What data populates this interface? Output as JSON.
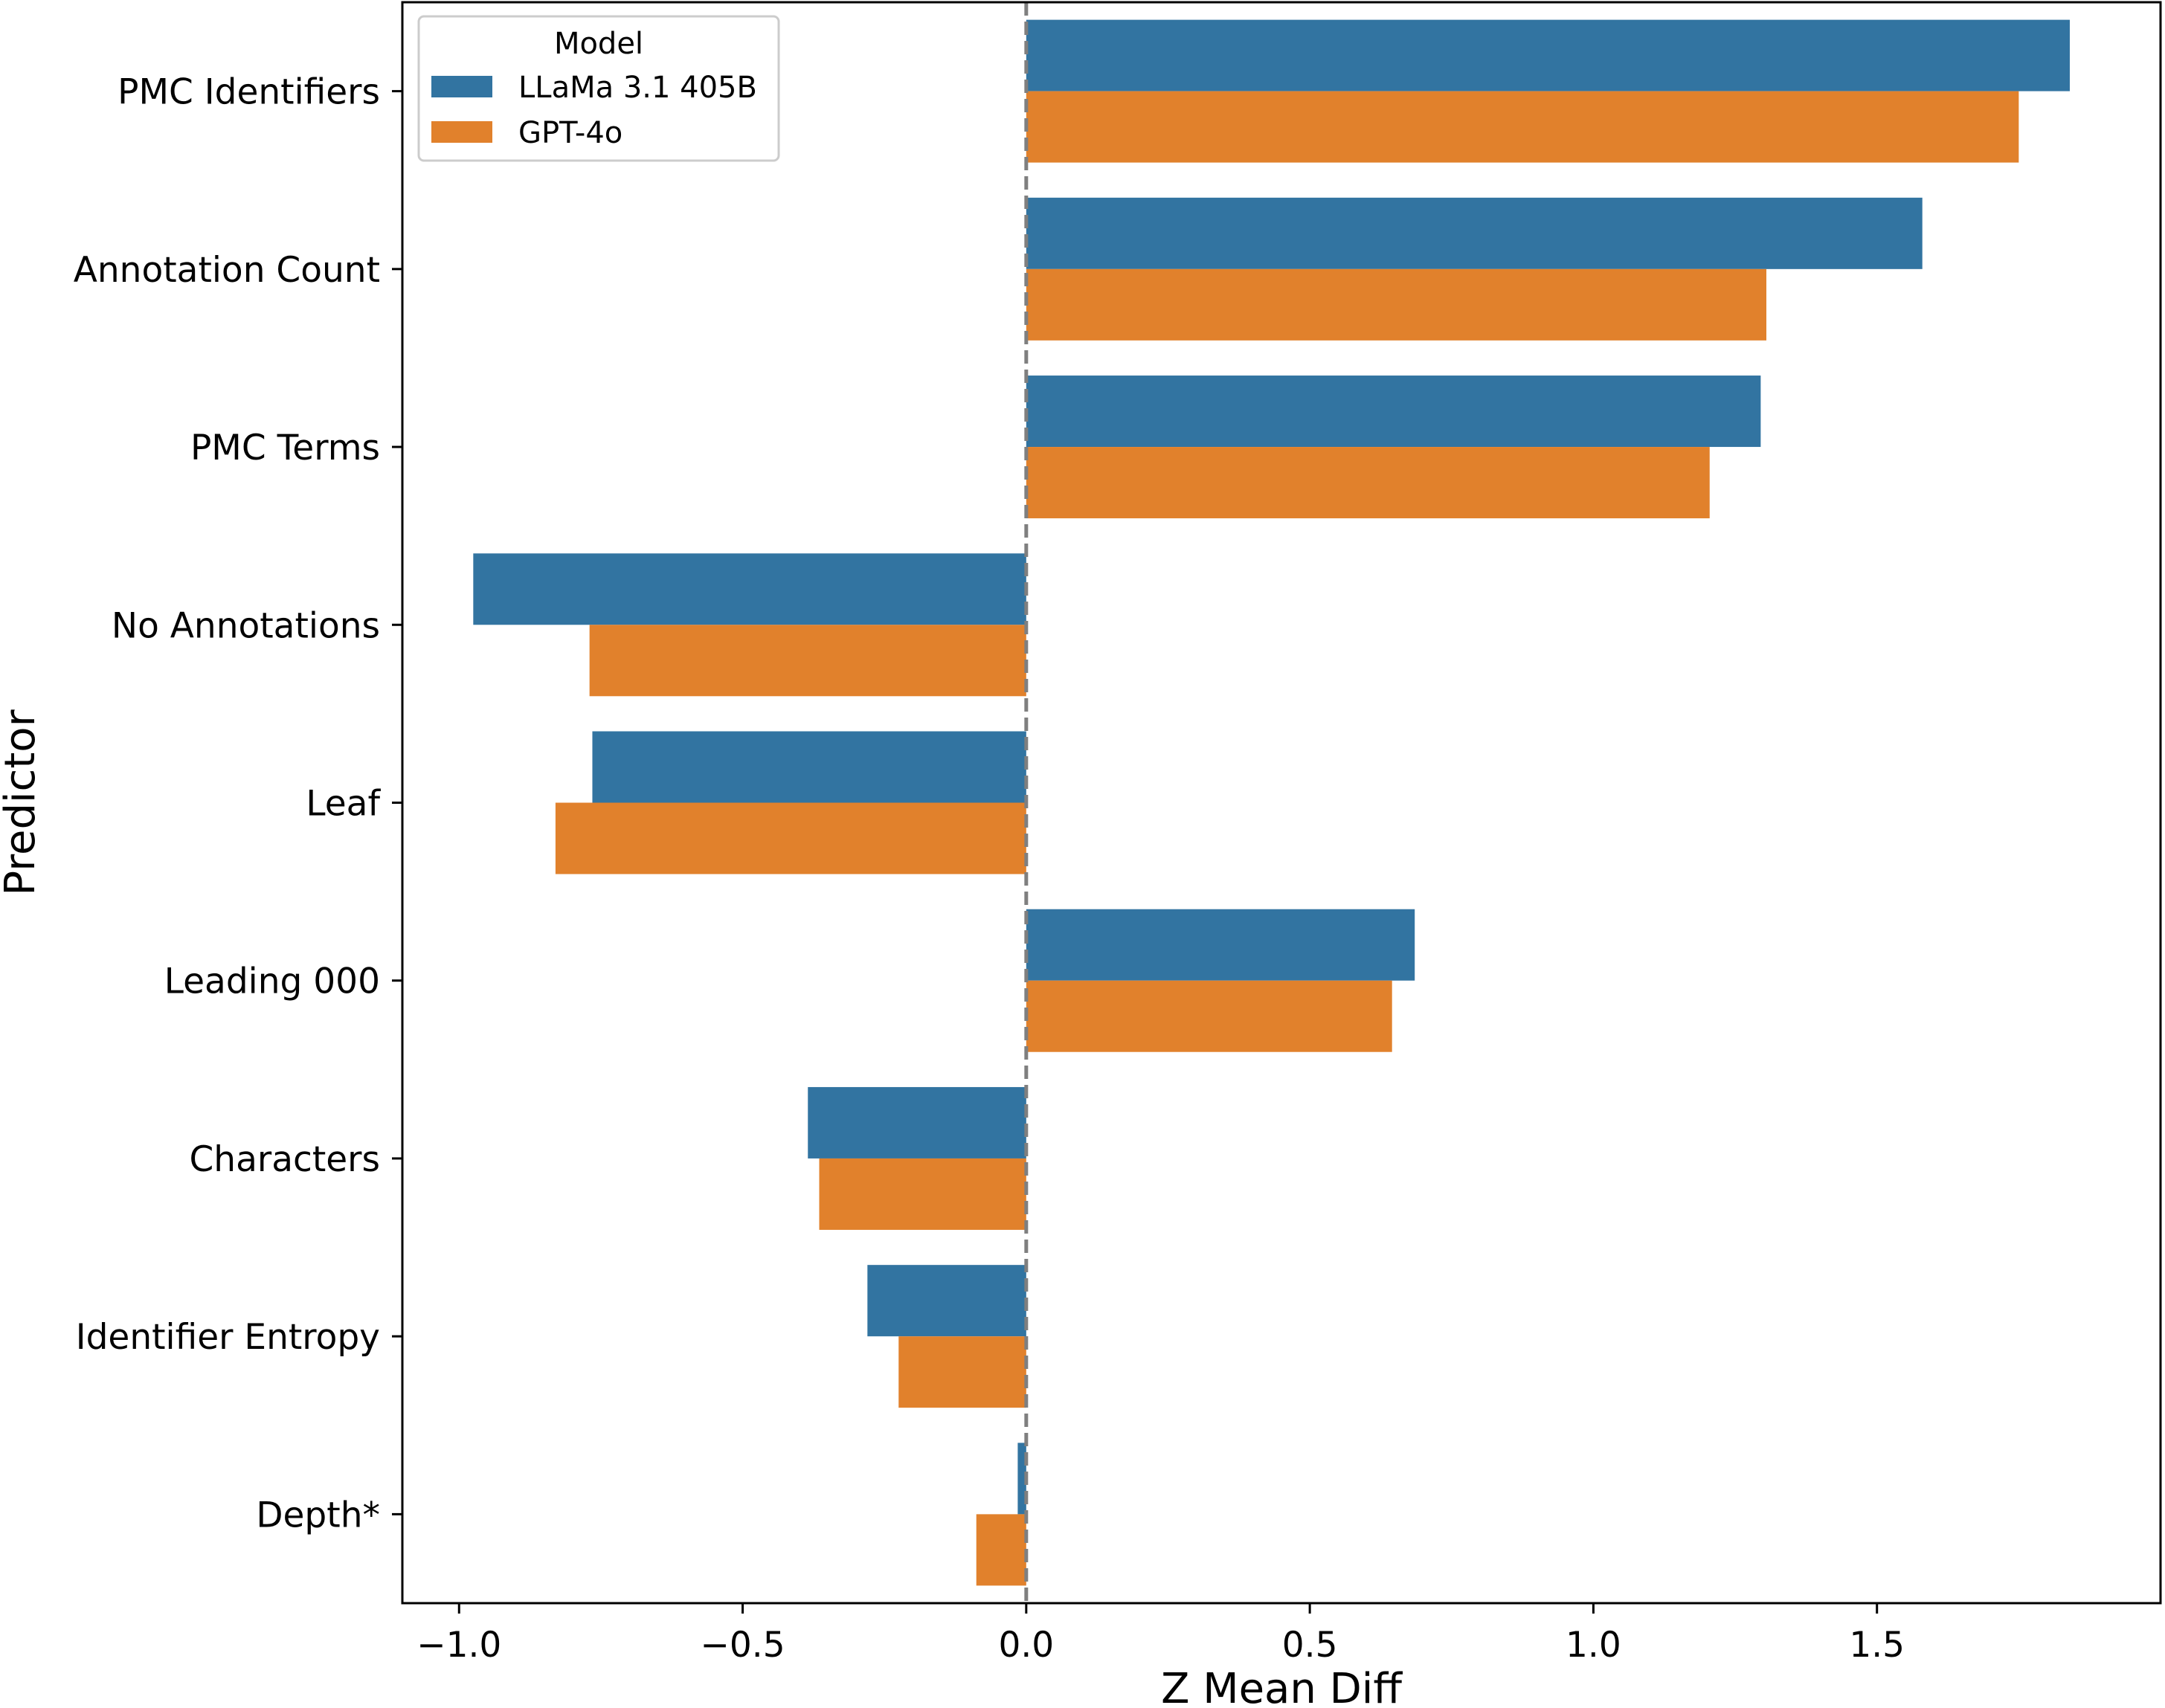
{
  "chart_data": {
    "type": "bar",
    "orientation": "horizontal",
    "title": "",
    "xlabel": "Z Mean Diff",
    "ylabel": "Predictor",
    "xlim": [
      -1.1,
      2.0
    ],
    "xticks": [
      -1.0,
      -0.5,
      0.0,
      0.5,
      1.0,
      1.5
    ],
    "xtick_labels": [
      "−1.0",
      "−0.5",
      "0.0",
      "0.5",
      "1.0",
      "1.5"
    ],
    "categories": [
      "PMC Identifiers",
      "Annotation Count",
      "PMC Terms",
      "No Annotations",
      "Leaf",
      "Leading 000",
      "Characters",
      "Identifier Entropy",
      "Depth*"
    ],
    "series": [
      {
        "name": "LLaMa 3.1 405B",
        "color": "#3274a1",
        "values": [
          1.84,
          1.58,
          1.295,
          -0.975,
          -0.765,
          0.685,
          -0.385,
          -0.28,
          -0.015
        ]
      },
      {
        "name": "GPT-4o",
        "color": "#e1812c",
        "values": [
          1.75,
          1.305,
          1.205,
          -0.77,
          -0.83,
          0.645,
          -0.365,
          -0.225,
          -0.088
        ]
      }
    ],
    "reference_line": {
      "x": 0.0,
      "style": "dashed",
      "color": "#7f7f7f"
    },
    "legend": {
      "title": "Model",
      "position": "top-left"
    },
    "grid": false
  }
}
